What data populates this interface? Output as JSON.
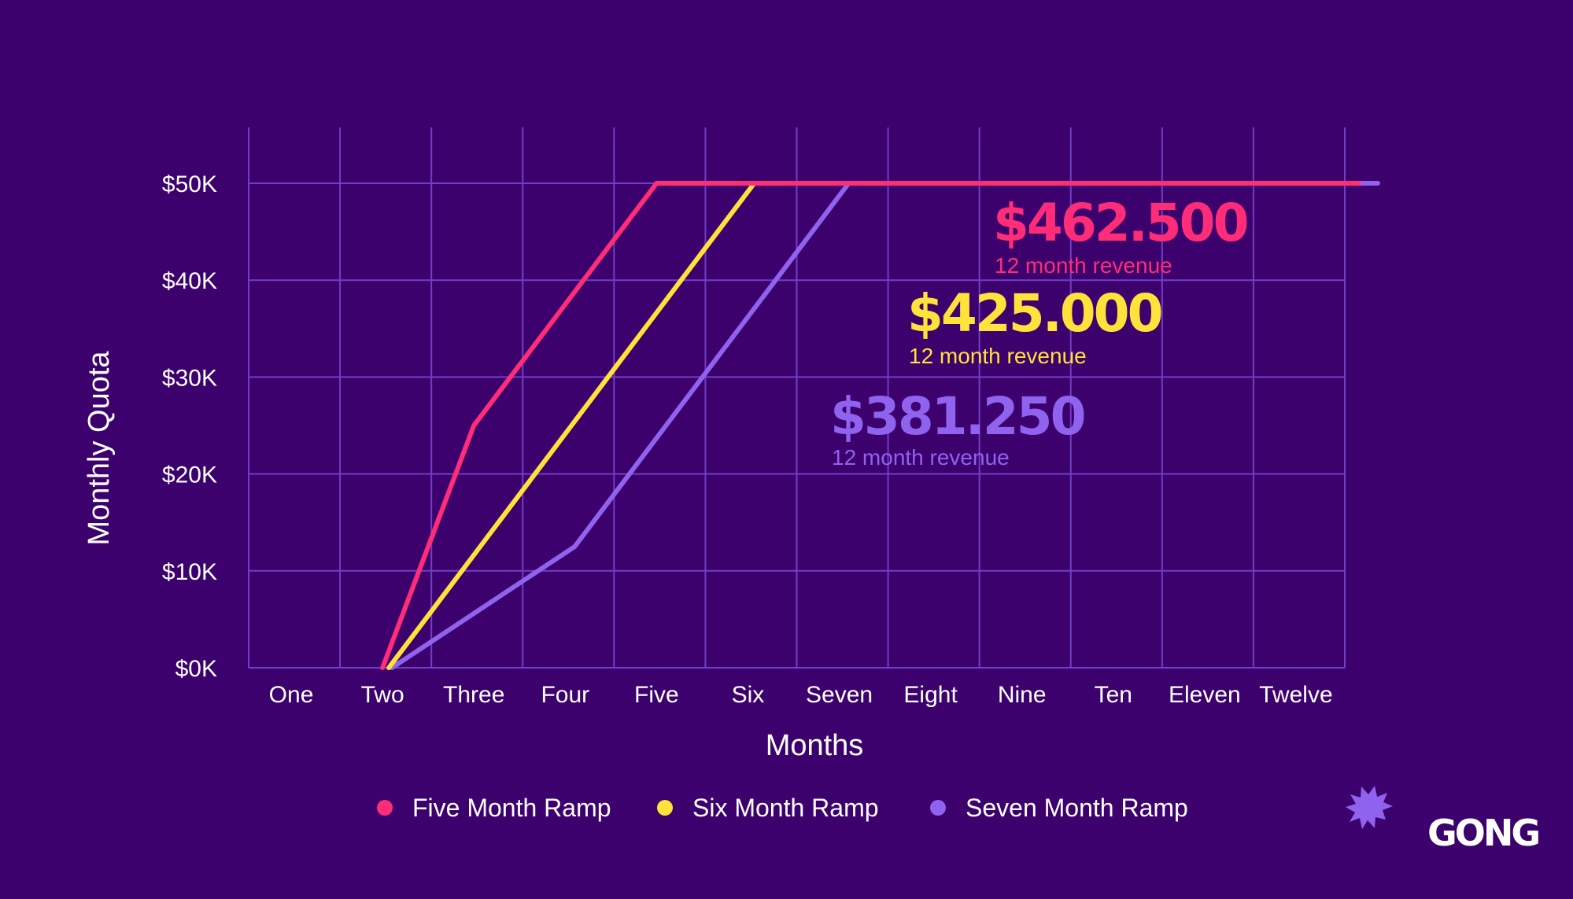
{
  "chart_data": {
    "type": "line",
    "xlabel": "Months",
    "ylabel": "Monthly Quota",
    "categories": [
      "One",
      "Two",
      "Three",
      "Four",
      "Five",
      "Six",
      "Seven",
      "Eight",
      "Nine",
      "Ten",
      "Eleven",
      "Twelve"
    ],
    "y_ticks": [
      "$0K",
      "$10K",
      "$20K",
      "$30K",
      "$40K",
      "$50K"
    ],
    "ylim": [
      0,
      50000
    ],
    "grid": true,
    "legend_position": "bottom-center",
    "series": [
      {
        "name": "Five Month Ramp",
        "color": "#ff2d78",
        "values": [
          null,
          0,
          25000,
          37500,
          50000,
          50000,
          50000,
          50000,
          50000,
          50000,
          50000,
          50000
        ]
      },
      {
        "name": "Six Month Ramp",
        "color": "#ffe23a",
        "values": [
          null,
          0,
          12500,
          25000,
          37500,
          50000,
          50000,
          50000,
          50000,
          50000,
          50000,
          50000
        ]
      },
      {
        "name": "Seven Month Ramp",
        "color": "#8f63ee",
        "values": [
          null,
          0,
          6250,
          12500,
          25000,
          37500,
          50000,
          50000,
          50000,
          50000,
          50000,
          50000
        ]
      }
    ],
    "annotations": [
      {
        "value": "$462.500",
        "label": "12 month revenue",
        "color": "#ff2d78"
      },
      {
        "value": "$425.000",
        "label": "12 month revenue",
        "color": "#ffe23a"
      },
      {
        "value": "$381.250",
        "label": "12 month revenue",
        "color": "#8f63ee"
      }
    ]
  },
  "logo": {
    "text": "GONG",
    "icon": "gong-burst-icon",
    "color": "#8f63ee"
  },
  "colors": {
    "background": "#3d016e",
    "grid": "#6f3fc4"
  }
}
